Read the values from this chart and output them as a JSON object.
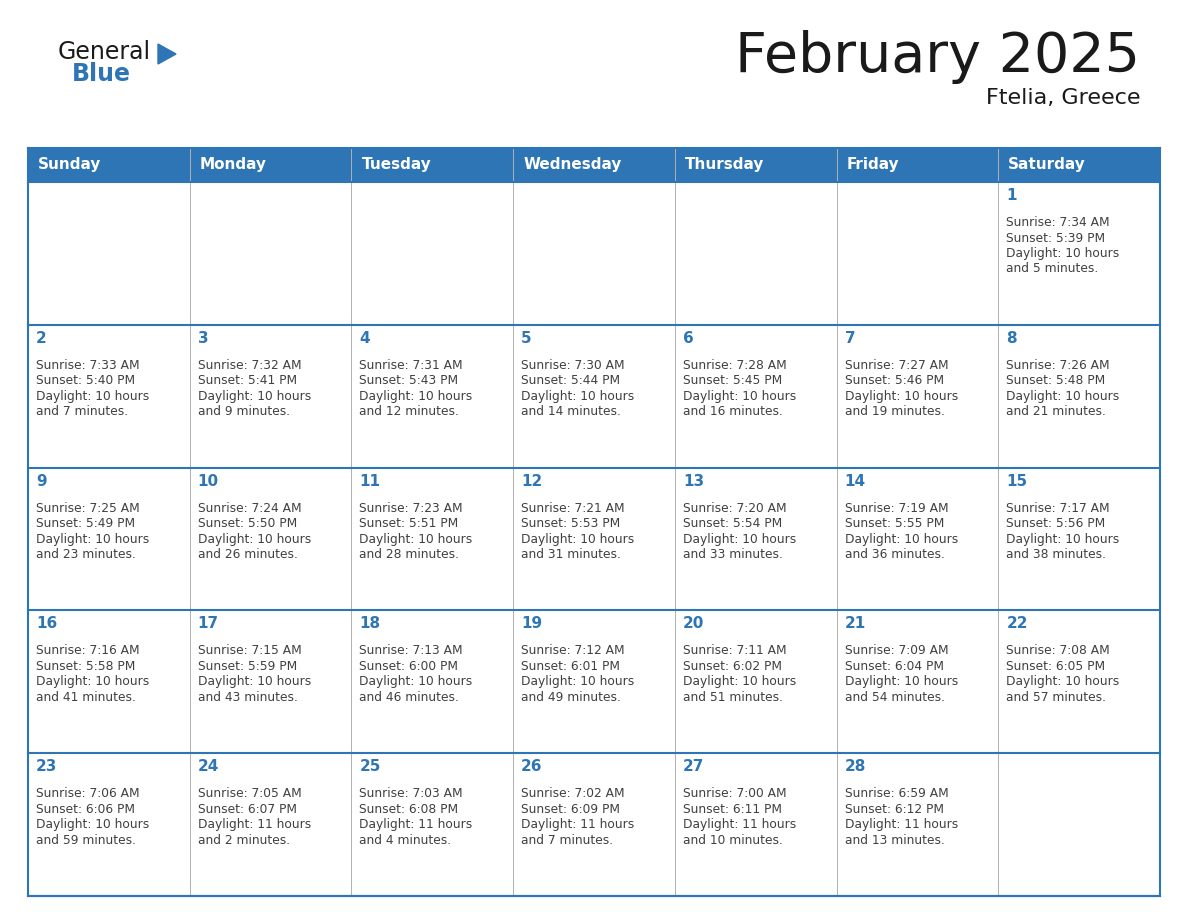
{
  "title": "February 2025",
  "subtitle": "Ftelia, Greece",
  "header_bg": "#2E75B6",
  "header_text_color": "#FFFFFF",
  "border_color": "#2E75B6",
  "cell_border_color": "#2E75B6",
  "day_number_color": "#2E75B6",
  "info_text_color": "#404040",
  "days_of_week": [
    "Sunday",
    "Monday",
    "Tuesday",
    "Wednesday",
    "Thursday",
    "Friday",
    "Saturday"
  ],
  "calendar_data": [
    [
      null,
      null,
      null,
      null,
      null,
      null,
      {
        "day": "1",
        "sunrise": "7:34 AM",
        "sunset": "5:39 PM",
        "daylight1": "10 hours",
        "daylight2": "and 5 minutes."
      }
    ],
    [
      {
        "day": "2",
        "sunrise": "7:33 AM",
        "sunset": "5:40 PM",
        "daylight1": "10 hours",
        "daylight2": "and 7 minutes."
      },
      {
        "day": "3",
        "sunrise": "7:32 AM",
        "sunset": "5:41 PM",
        "daylight1": "10 hours",
        "daylight2": "and 9 minutes."
      },
      {
        "day": "4",
        "sunrise": "7:31 AM",
        "sunset": "5:43 PM",
        "daylight1": "10 hours",
        "daylight2": "and 12 minutes."
      },
      {
        "day": "5",
        "sunrise": "7:30 AM",
        "sunset": "5:44 PM",
        "daylight1": "10 hours",
        "daylight2": "and 14 minutes."
      },
      {
        "day": "6",
        "sunrise": "7:28 AM",
        "sunset": "5:45 PM",
        "daylight1": "10 hours",
        "daylight2": "and 16 minutes."
      },
      {
        "day": "7",
        "sunrise": "7:27 AM",
        "sunset": "5:46 PM",
        "daylight1": "10 hours",
        "daylight2": "and 19 minutes."
      },
      {
        "day": "8",
        "sunrise": "7:26 AM",
        "sunset": "5:48 PM",
        "daylight1": "10 hours",
        "daylight2": "and 21 minutes."
      }
    ],
    [
      {
        "day": "9",
        "sunrise": "7:25 AM",
        "sunset": "5:49 PM",
        "daylight1": "10 hours",
        "daylight2": "and 23 minutes."
      },
      {
        "day": "10",
        "sunrise": "7:24 AM",
        "sunset": "5:50 PM",
        "daylight1": "10 hours",
        "daylight2": "and 26 minutes."
      },
      {
        "day": "11",
        "sunrise": "7:23 AM",
        "sunset": "5:51 PM",
        "daylight1": "10 hours",
        "daylight2": "and 28 minutes."
      },
      {
        "day": "12",
        "sunrise": "7:21 AM",
        "sunset": "5:53 PM",
        "daylight1": "10 hours",
        "daylight2": "and 31 minutes."
      },
      {
        "day": "13",
        "sunrise": "7:20 AM",
        "sunset": "5:54 PM",
        "daylight1": "10 hours",
        "daylight2": "and 33 minutes."
      },
      {
        "day": "14",
        "sunrise": "7:19 AM",
        "sunset": "5:55 PM",
        "daylight1": "10 hours",
        "daylight2": "and 36 minutes."
      },
      {
        "day": "15",
        "sunrise": "7:17 AM",
        "sunset": "5:56 PM",
        "daylight1": "10 hours",
        "daylight2": "and 38 minutes."
      }
    ],
    [
      {
        "day": "16",
        "sunrise": "7:16 AM",
        "sunset": "5:58 PM",
        "daylight1": "10 hours",
        "daylight2": "and 41 minutes."
      },
      {
        "day": "17",
        "sunrise": "7:15 AM",
        "sunset": "5:59 PM",
        "daylight1": "10 hours",
        "daylight2": "and 43 minutes."
      },
      {
        "day": "18",
        "sunrise": "7:13 AM",
        "sunset": "6:00 PM",
        "daylight1": "10 hours",
        "daylight2": "and 46 minutes."
      },
      {
        "day": "19",
        "sunrise": "7:12 AM",
        "sunset": "6:01 PM",
        "daylight1": "10 hours",
        "daylight2": "and 49 minutes."
      },
      {
        "day": "20",
        "sunrise": "7:11 AM",
        "sunset": "6:02 PM",
        "daylight1": "10 hours",
        "daylight2": "and 51 minutes."
      },
      {
        "day": "21",
        "sunrise": "7:09 AM",
        "sunset": "6:04 PM",
        "daylight1": "10 hours",
        "daylight2": "and 54 minutes."
      },
      {
        "day": "22",
        "sunrise": "7:08 AM",
        "sunset": "6:05 PM",
        "daylight1": "10 hours",
        "daylight2": "and 57 minutes."
      }
    ],
    [
      {
        "day": "23",
        "sunrise": "7:06 AM",
        "sunset": "6:06 PM",
        "daylight1": "10 hours",
        "daylight2": "and 59 minutes."
      },
      {
        "day": "24",
        "sunrise": "7:05 AM",
        "sunset": "6:07 PM",
        "daylight1": "11 hours",
        "daylight2": "and 2 minutes."
      },
      {
        "day": "25",
        "sunrise": "7:03 AM",
        "sunset": "6:08 PM",
        "daylight1": "11 hours",
        "daylight2": "and 4 minutes."
      },
      {
        "day": "26",
        "sunrise": "7:02 AM",
        "sunset": "6:09 PM",
        "daylight1": "11 hours",
        "daylight2": "and 7 minutes."
      },
      {
        "day": "27",
        "sunrise": "7:00 AM",
        "sunset": "6:11 PM",
        "daylight1": "11 hours",
        "daylight2": "and 10 minutes."
      },
      {
        "day": "28",
        "sunrise": "6:59 AM",
        "sunset": "6:12 PM",
        "daylight1": "11 hours",
        "daylight2": "and 13 minutes."
      },
      null
    ]
  ]
}
